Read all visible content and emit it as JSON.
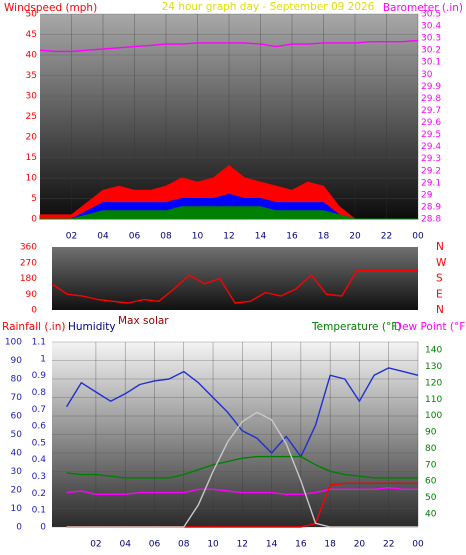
{
  "chart_data": [
    {
      "type": "line",
      "title": "24 hour graph day - September 09 2026",
      "ylabel": "Windspeed (mph)",
      "y2label": "Barometer (.in)",
      "x": [
        0,
        1,
        2,
        3,
        4,
        5,
        6,
        7,
        8,
        9,
        10,
        11,
        12,
        13,
        14,
        15,
        16,
        17,
        18,
        19,
        20,
        21,
        22,
        23,
        24
      ],
      "xlim": [
        0,
        24
      ],
      "xticks": [
        {
          "value": 2,
          "label": "02"
        },
        {
          "value": 4,
          "label": "04"
        },
        {
          "value": 6,
          "label": "06"
        },
        {
          "value": 8,
          "label": "08"
        },
        10,
        12,
        14,
        16,
        18,
        20,
        22,
        {
          "value": 24,
          "label": "00"
        }
      ],
      "ylim": [
        0,
        50
      ],
      "yticks": [
        0,
        5,
        10,
        15,
        20,
        25,
        30,
        35,
        40,
        45,
        50
      ],
      "y2lim": [
        28.8,
        30.5
      ],
      "y2ticks": [
        28.8,
        28.9,
        29,
        29.1,
        29.2,
        29.3,
        29.4,
        29.5,
        29.6,
        29.7,
        29.8,
        29.9,
        30,
        30.1,
        30.2,
        30.3,
        30.4,
        30.5
      ],
      "grid": true,
      "series": [
        {
          "color": "#ff0000",
          "fill": true,
          "values": [
            1,
            1,
            1,
            4,
            7,
            8,
            7,
            7,
            8,
            10,
            9,
            10,
            13,
            10,
            9,
            8,
            7,
            9,
            8,
            3,
            0,
            0,
            0,
            0,
            0
          ]
        },
        {
          "color": "#0000ff",
          "fill": true,
          "values": [
            0,
            0,
            0,
            2,
            4,
            4,
            4,
            4,
            4,
            5,
            5,
            5,
            6,
            5,
            5,
            4,
            4,
            4,
            4,
            1,
            0,
            0,
            0,
            0,
            0
          ]
        },
        {
          "color": "#008000",
          "fill": true,
          "values": [
            0,
            0,
            0,
            1,
            2,
            2,
            2,
            2,
            2,
            3,
            3,
            3,
            3,
            3,
            3,
            2,
            2,
            2,
            2,
            1,
            0,
            0,
            0,
            0,
            0
          ]
        },
        {
          "color": "#ff00ff",
          "axis": "y2",
          "values": [
            30.2,
            30.19,
            30.19,
            30.2,
            30.21,
            30.22,
            30.23,
            30.24,
            30.25,
            30.25,
            30.26,
            30.26,
            30.26,
            30.26,
            30.25,
            30.23,
            30.25,
            30.25,
            30.26,
            30.26,
            30.26,
            30.27,
            30.27,
            30.27,
            30.28
          ]
        }
      ]
    },
    {
      "type": "line",
      "x": [
        0,
        1,
        2,
        3,
        4,
        5,
        6,
        7,
        8,
        9,
        10,
        11,
        12,
        13,
        14,
        15,
        16,
        17,
        18,
        19,
        20,
        21,
        22,
        23,
        24
      ],
      "xlim": [
        0,
        24
      ],
      "ylim": [
        0,
        360
      ],
      "yticks": [
        0,
        90,
        180,
        270,
        360
      ],
      "y2lim": [
        0,
        360
      ],
      "y2ticks": [
        {
          "value": 0,
          "label": "N"
        },
        {
          "value": 90,
          "label": "E"
        },
        {
          "value": 180,
          "label": "S"
        },
        {
          "value": 270,
          "label": "W"
        },
        {
          "value": 360,
          "label": "N"
        }
      ],
      "series": [
        {
          "color": "#ff0000",
          "values": [
            150,
            90,
            80,
            60,
            50,
            40,
            60,
            50,
            120,
            200,
            150,
            180,
            40,
            50,
            100,
            80,
            120,
            200,
            90,
            80,
            225,
            225,
            225,
            225,
            225
          ]
        }
      ]
    },
    {
      "type": "line",
      "x": [
        0,
        1,
        2,
        3,
        4,
        5,
        6,
        7,
        8,
        9,
        10,
        11,
        12,
        13,
        14,
        15,
        16,
        17,
        18,
        19,
        20,
        21,
        22,
        23,
        24
      ],
      "xlim": [
        -1,
        24
      ],
      "xticks": [
        {
          "value": 2,
          "label": "02"
        },
        {
          "value": 4,
          "label": "04"
        },
        {
          "value": 6,
          "label": "06"
        },
        {
          "value": 8,
          "label": "08"
        },
        10,
        12,
        14,
        16,
        18,
        20,
        22,
        {
          "value": 24,
          "label": "00"
        }
      ],
      "ylim": [
        0,
        100
      ],
      "yticks": [
        0,
        10,
        20,
        30,
        40,
        50,
        60,
        70,
        80,
        90,
        100
      ],
      "y2lim": [
        32,
        145
      ],
      "y2ticks": [
        40,
        50,
        60,
        70,
        80,
        90,
        100,
        110,
        120,
        130,
        140
      ],
      "y3lim": [
        0,
        1.1
      ],
      "y3ticks": [
        0,
        0.1,
        0.2,
        0.3,
        0.4,
        0.5,
        0.6,
        0.7,
        0.8,
        0.9,
        1,
        1.1
      ],
      "grid": true,
      "series": [
        {
          "name": "Humidity",
          "color": "#2030d0",
          "values": [
            65,
            78,
            73,
            68,
            72,
            77,
            79,
            80,
            84,
            78,
            70,
            62,
            52,
            48,
            40,
            49,
            38,
            55,
            82,
            80,
            68,
            82,
            86,
            84,
            82
          ]
        },
        {
          "name": "Temperature (°F)",
          "color": "#008000",
          "axis": "y2",
          "values": [
            65,
            64,
            64,
            63,
            62,
            62,
            62,
            62,
            64,
            67,
            70,
            72,
            74,
            75,
            75,
            75,
            75,
            70,
            66,
            64,
            63,
            62,
            62,
            62,
            62
          ]
        },
        {
          "name": "Dew Point (°F)",
          "color": "#ff00ff",
          "axis": "y2",
          "values": [
            53,
            54,
            52,
            52,
            52,
            53,
            53,
            53,
            53,
            55,
            55,
            54,
            53,
            53,
            53,
            52,
            52,
            53,
            55,
            55,
            55,
            55,
            56,
            55,
            55
          ]
        },
        {
          "name": "Rainfall (.in)",
          "color": "#ff0000",
          "axis": "y3",
          "values": [
            0,
            0,
            0,
            0,
            0,
            0,
            0,
            0,
            0,
            0,
            0,
            0,
            0,
            0,
            0,
            0,
            0,
            0.02,
            0.25,
            0.26,
            0.26,
            0.26,
            0.26,
            0.26,
            0.26
          ]
        },
        {
          "name": "Max solar",
          "color": "#c8c8c8",
          "values": [
            0,
            0,
            0,
            0,
            0,
            0,
            0,
            0,
            0,
            12,
            30,
            46,
            57,
            62,
            58,
            45,
            25,
            2,
            0,
            0,
            0,
            0,
            0,
            0,
            0
          ]
        }
      ]
    }
  ]
}
